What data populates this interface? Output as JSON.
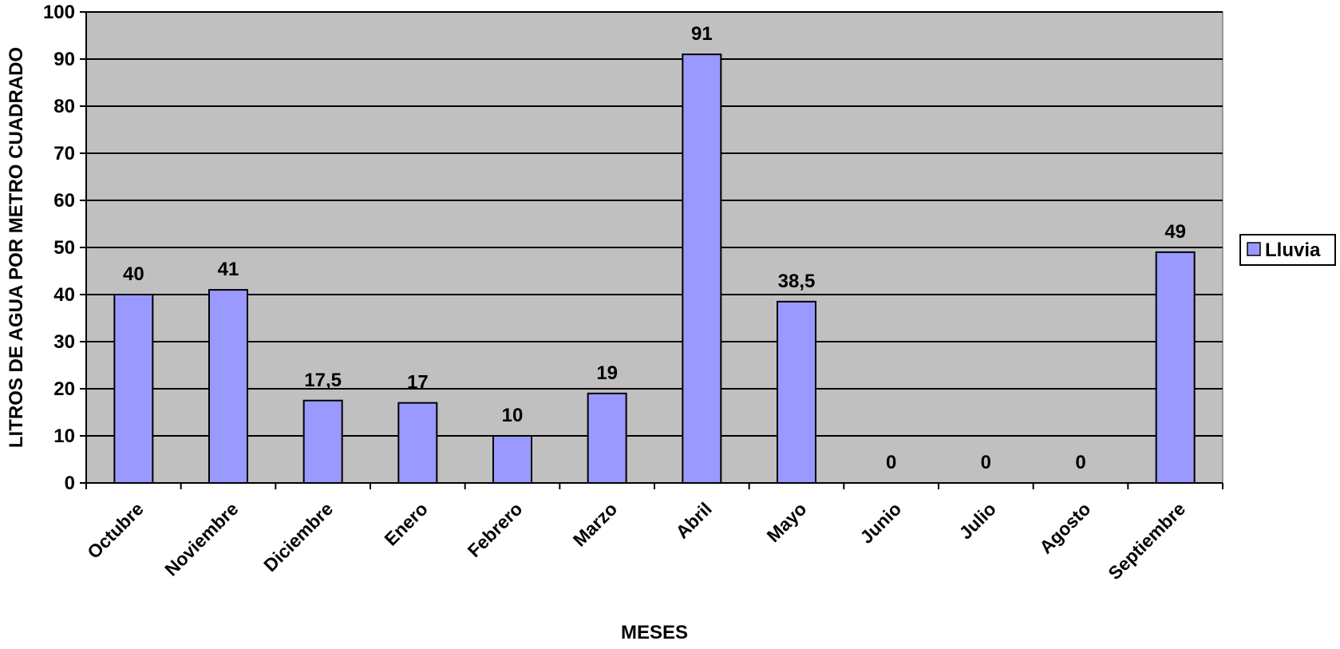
{
  "chart_data": {
    "type": "bar",
    "categories": [
      "Octubre",
      "Noviembre",
      "Diciembre",
      "Enero",
      "Febrero",
      "Marzo",
      "Abril",
      "Mayo",
      "Junio",
      "Julio",
      "Agosto",
      "Septiembre"
    ],
    "series": [
      {
        "name": "Lluvia",
        "values": [
          40,
          41,
          17.5,
          17,
          10,
          19,
          91,
          38.5,
          0,
          0,
          0,
          49
        ],
        "data_labels": [
          "40",
          "41",
          "17,5",
          "17",
          "10",
          "19",
          "91",
          "38,5",
          "0",
          "0",
          "0",
          "49"
        ],
        "color": "#9999ff"
      }
    ],
    "title": "",
    "xlabel": "MESES",
    "ylabel": "LITROS DE AGUA POR METRO CUADRADO",
    "ylim": [
      0,
      100
    ],
    "yticks": [
      0,
      10,
      20,
      30,
      40,
      50,
      60,
      70,
      80,
      90,
      100
    ],
    "grid": true,
    "legend": "right",
    "plot_background": "#c0c0c0",
    "gridline_color": "#000000"
  }
}
